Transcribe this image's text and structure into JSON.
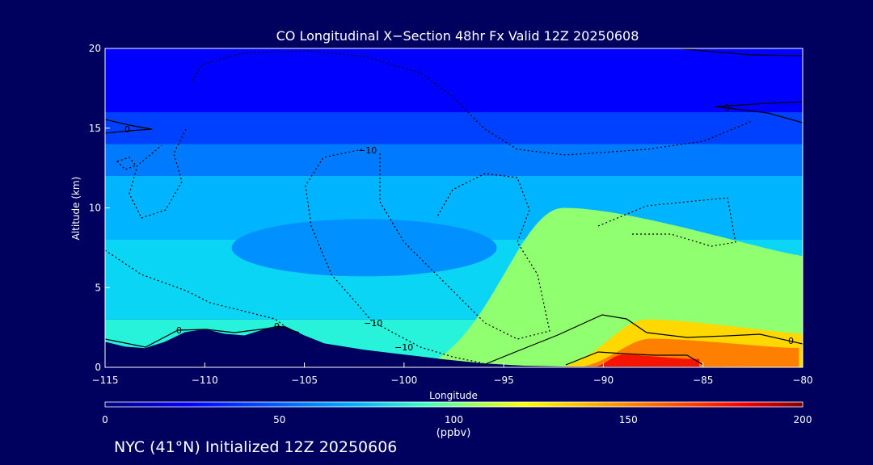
{
  "chart_data": {
    "type": "heatmap",
    "title": "CO Longitudinal X−Section 48hr  Fx Valid 12Z 20250608",
    "xlabel": "Longitude",
    "ylabel": "Altitude (km)",
    "xlim": [
      -115,
      -80
    ],
    "ylim": [
      0,
      20
    ],
    "x_ticks": [
      "−115",
      "−110",
      "−105",
      "−100",
      "−95",
      "−90",
      "−85",
      "−80"
    ],
    "y_ticks": [
      "0",
      "5",
      "10",
      "15",
      "20"
    ],
    "colorbar": {
      "min": 0,
      "max": 200,
      "ticks": [
        "0",
        "50",
        "100",
        "150",
        "200"
      ],
      "unit": "(ppbv)"
    },
    "contour_labels": [
      "0",
      "−10"
    ],
    "layers": [
      {
        "z_bottom": 16,
        "z_top": 20,
        "co_ppbv": 25
      },
      {
        "z_bottom": 14,
        "z_top": 16,
        "co_ppbv": 45
      },
      {
        "z_bottom": 12,
        "z_top": 14,
        "co_ppbv": 58
      },
      {
        "z_bottom": 8,
        "z_top": 12,
        "co_ppbv": 70
      },
      {
        "z_bottom": 3,
        "z_top": 8,
        "co_ppbv": 80
      },
      {
        "z_bottom": 0,
        "z_top": 3,
        "co_ppbv": 92
      }
    ],
    "minima": [
      {
        "lon": -102,
        "alt": 7.5,
        "co_ppbv": 62
      }
    ],
    "plumes": [
      {
        "lon_from": -100,
        "lon_to": -80,
        "co_ppbv": 110,
        "peak_alt": 10
      },
      {
        "lon_from": -93,
        "lon_to": -80,
        "co_ppbv": 130,
        "peak_alt": 3
      },
      {
        "lon_from": -92,
        "lon_to": -81,
        "co_ppbv": 150,
        "peak_alt": 1.8
      },
      {
        "lon_from": -91,
        "lon_to": -86,
        "co_ppbv": 175,
        "peak_alt": 0.8
      }
    ],
    "terrain_km": [
      [
        -115,
        1.6
      ],
      [
        -114,
        1.3
      ],
      [
        -113,
        1.2
      ],
      [
        -112,
        1.6
      ],
      [
        -111,
        2.2
      ],
      [
        -110,
        2.4
      ],
      [
        -109,
        2.1
      ],
      [
        -108,
        2.0
      ],
      [
        -107,
        2.4
      ],
      [
        -106,
        2.6
      ],
      [
        -105,
        2.0
      ],
      [
        -104,
        1.5
      ],
      [
        -102,
        1.1
      ],
      [
        -100,
        0.8
      ],
      [
        -98,
        0.5
      ],
      [
        -96,
        0.25
      ],
      [
        -94,
        0.1
      ],
      [
        -92,
        0.05
      ],
      [
        -80,
        0.02
      ]
    ]
  },
  "footer": {
    "text": "NYC (41°N) Initialized 12Z 20250606"
  }
}
